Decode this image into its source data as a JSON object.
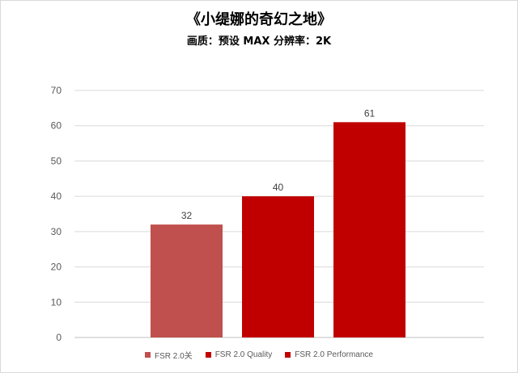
{
  "header": {
    "title": "《小缇娜的奇幻之地》",
    "subtitle": "画质：预设 MAX    分辨率：2K"
  },
  "chart_data": {
    "type": "bar",
    "series": [
      {
        "name": "FSR 2.0关",
        "value": 32,
        "color": "#c0504d"
      },
      {
        "name": "FSR 2.0 Quality",
        "value": 40,
        "color": "#c00000"
      },
      {
        "name": "FSR 2.0 Performance",
        "value": 61,
        "color": "#c00000"
      }
    ],
    "ylim": [
      0,
      70
    ],
    "yticks": [
      0,
      10,
      20,
      30,
      40,
      50,
      60,
      70
    ],
    "grid": true,
    "legend_position": "bottom",
    "data_labels": true
  }
}
